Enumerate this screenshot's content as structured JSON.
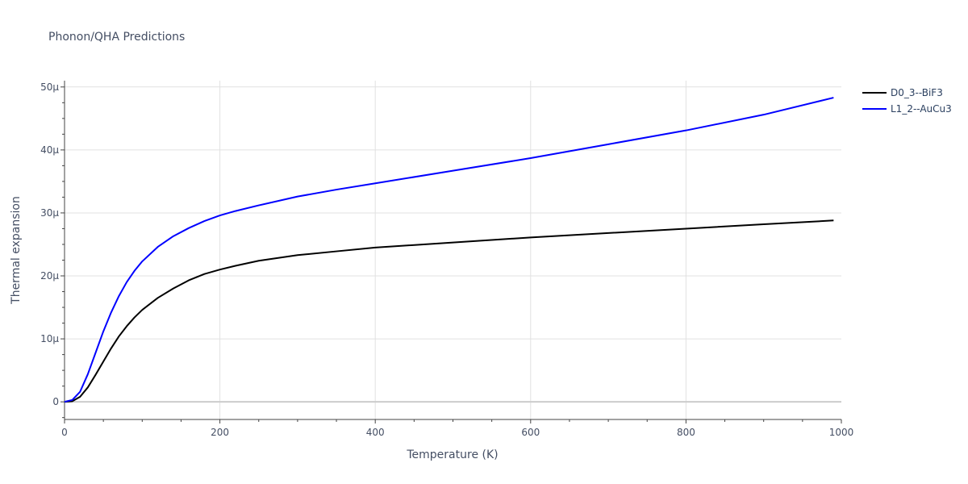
{
  "chart_data": {
    "type": "line",
    "title": "Phonon/QHA Predictions",
    "xlabel": "Temperature (K)",
    "ylabel": "Thermal expansion",
    "xlim": [
      0,
      1000
    ],
    "ylim": [
      -2.8e-06,
      5.1e-05
    ],
    "x_ticks": [
      {
        "value": 0,
        "label": "0"
      },
      {
        "value": 200,
        "label": "200"
      },
      {
        "value": 400,
        "label": "400"
      },
      {
        "value": 600,
        "label": "600"
      },
      {
        "value": 800,
        "label": "800"
      },
      {
        "value": 1000,
        "label": "1000"
      }
    ],
    "y_ticks": [
      {
        "value": 0,
        "label": "0"
      },
      {
        "value": 1e-05,
        "label": "10μ"
      },
      {
        "value": 2e-05,
        "label": "20μ"
      },
      {
        "value": 3e-05,
        "label": "30μ"
      },
      {
        "value": 4e-05,
        "label": "40μ"
      },
      {
        "value": 5e-05,
        "label": "50μ"
      }
    ],
    "grid": true,
    "legend_position": "top-right",
    "series": [
      {
        "name": "D0_3--BiF3",
        "color": "#000000",
        "x": [
          0,
          10,
          20,
          30,
          40,
          50,
          60,
          70,
          80,
          90,
          100,
          120,
          140,
          160,
          180,
          200,
          220,
          250,
          300,
          350,
          400,
          500,
          600,
          700,
          800,
          900,
          990
        ],
        "y": [
          0,
          1e-07,
          8e-07,
          2.3e-06,
          4.3e-06,
          6.4e-06,
          8.5e-06,
          1.04e-05,
          1.2e-05,
          1.34e-05,
          1.46e-05,
          1.65e-05,
          1.8e-05,
          1.93e-05,
          2.03e-05,
          2.1e-05,
          2.16e-05,
          2.24e-05,
          2.33e-05,
          2.39e-05,
          2.45e-05,
          2.53e-05,
          2.61e-05,
          2.68e-05,
          2.75e-05,
          2.82e-05,
          2.88e-05
        ]
      },
      {
        "name": "L1_2--AuCu3",
        "color": "#0000ff",
        "x": [
          0,
          10,
          20,
          30,
          40,
          50,
          60,
          70,
          80,
          90,
          100,
          120,
          140,
          160,
          180,
          200,
          220,
          250,
          300,
          350,
          400,
          500,
          600,
          700,
          800,
          900,
          990
        ],
        "y": [
          0,
          3e-07,
          1.6e-06,
          4.4e-06,
          7.8e-06,
          1.12e-05,
          1.42e-05,
          1.68e-05,
          1.9e-05,
          2.08e-05,
          2.23e-05,
          2.46e-05,
          2.63e-05,
          2.76e-05,
          2.87e-05,
          2.96e-05,
          3.03e-05,
          3.12e-05,
          3.26e-05,
          3.37e-05,
          3.47e-05,
          3.67e-05,
          3.87e-05,
          4.09e-05,
          4.31e-05,
          4.56e-05,
          4.83e-05
        ]
      }
    ]
  }
}
